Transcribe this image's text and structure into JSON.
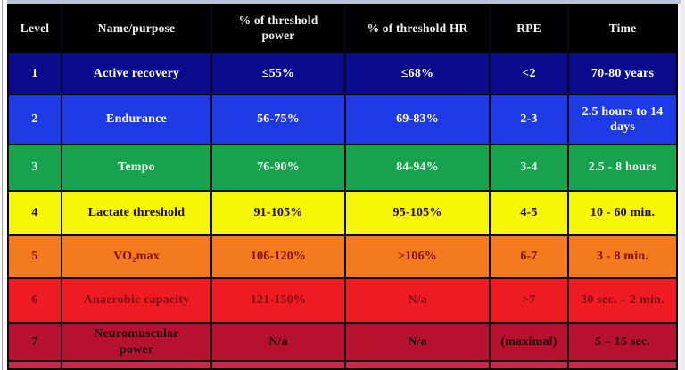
{
  "table": {
    "header": {
      "bg": "#000000",
      "fg": "#f4f4f4",
      "columns": [
        {
          "key": "level",
          "label": "Level"
        },
        {
          "key": "name",
          "label": "Name/purpose"
        },
        {
          "key": "power",
          "label": "% of threshold power"
        },
        {
          "key": "hr",
          "label": "% of threshold HR"
        },
        {
          "key": "rpe",
          "label": "RPE"
        },
        {
          "key": "time",
          "label": "Time"
        }
      ]
    },
    "rows": [
      {
        "level": "1",
        "name": "Active recovery",
        "power": "≤55%",
        "hr": "≤68%",
        "rpe": "<2",
        "time": "70-80 years",
        "bg": "#0a0a8c",
        "fg": "#ffffff"
      },
      {
        "level": "2",
        "name": "Endurance",
        "power": "56-75%",
        "hr": "69-83%",
        "rpe": "2-3",
        "time": "2.5 hours to 14 days",
        "bg": "#1d3ae4",
        "fg": "#ffffff"
      },
      {
        "level": "3",
        "name": "Tempo",
        "power": "76-90%",
        "hr": "84-94%",
        "rpe": "3-4",
        "time": "2.5 - 8 hours",
        "bg": "#17a24d",
        "fg": "#e6f5ea"
      },
      {
        "level": "4",
        "name": "Lactate threshold",
        "power": "91-105%",
        "hr": "95-105%",
        "rpe": "4-5",
        "time": "10 - 60 min.",
        "bg": "#f6f607",
        "fg": "#230505"
      },
      {
        "level": "5",
        "name": "VO₂max",
        "power": "106-120%",
        "hr": ">106%",
        "rpe": "6-7",
        "time": "3 - 8 min.",
        "bg": "#f5791d",
        "fg": "#7c1108"
      },
      {
        "level": "6",
        "name": "Anaerobic capacity",
        "power": "121-150%",
        "hr": "N/a",
        "rpe": ">7",
        "time": "30 sec. – 2 min.",
        "bg": "#ee1b23",
        "fg": "#7e0e14"
      },
      {
        "level": "7",
        "name": "Neuromuscular power",
        "power": "N/a",
        "hr": "N/a",
        "rpe": "(maximal)",
        "time": "5 – 15 sec.",
        "bg": "#b61230",
        "fg": "#150404"
      }
    ],
    "cutoff_strip_color": "#c52c47"
  }
}
